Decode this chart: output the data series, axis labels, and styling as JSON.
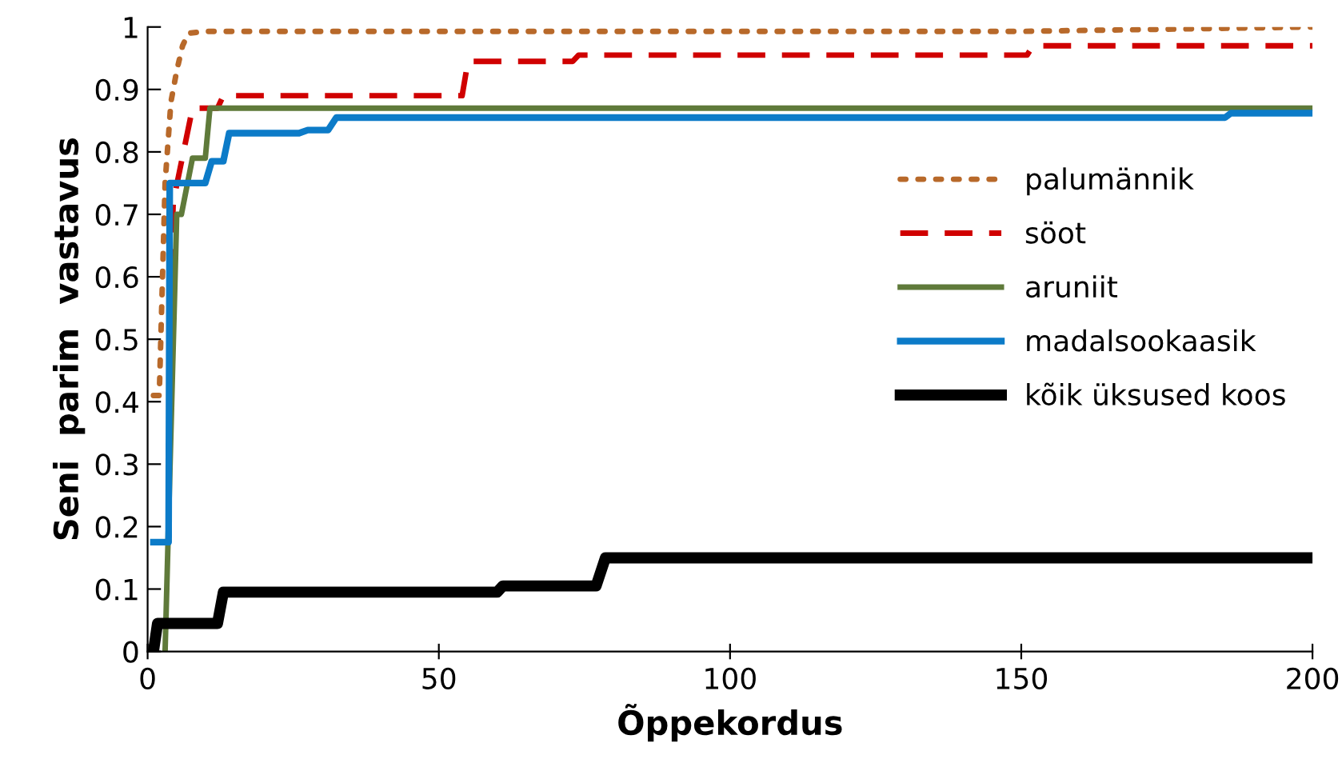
{
  "chart_data": {
    "type": "line",
    "xlabel": "Õppekordus",
    "ylabel": "Seni  parim  vastavus",
    "xlim": [
      0,
      200
    ],
    "ylim": [
      0,
      1
    ],
    "xticks": [
      0,
      50,
      100,
      150,
      200
    ],
    "yticks": [
      0,
      0.1,
      0.2,
      0.3,
      0.4,
      0.5,
      0.6,
      0.7,
      0.8,
      0.9,
      1
    ],
    "grid": false,
    "legend": "right",
    "series": [
      {
        "name": "palumännik",
        "color": "#b8692a",
        "line_style": "dotted",
        "x": [
          1,
          2,
          3,
          4,
          5,
          6,
          7,
          10,
          150,
          200
        ],
        "values": [
          0.41,
          0.41,
          0.75,
          0.88,
          0.93,
          0.97,
          0.99,
          0.993,
          0.993,
          1.0
        ]
      },
      {
        "name": "söot",
        "color": "#d00000",
        "line_style": "dashed",
        "x": [
          4,
          4.4,
          7.7,
          12,
          13,
          54,
          55,
          73,
          74,
          151,
          152,
          200
        ],
        "values": [
          0.6,
          0.72,
          0.87,
          0.87,
          0.89,
          0.89,
          0.945,
          0.945,
          0.955,
          0.955,
          0.97,
          0.97
        ]
      },
      {
        "name": "aruniit",
        "color": "#5f7a3a",
        "line_style": "solid",
        "x": [
          3,
          5,
          5.8,
          7.7,
          9.9,
          10.7,
          200
        ],
        "values": [
          0,
          0.7,
          0.7,
          0.79,
          0.79,
          0.87,
          0.87
        ]
      },
      {
        "name": "madalsookaasik",
        "color": "#0c7bc8",
        "line_style": "solid",
        "x": [
          1,
          3.6,
          3.8,
          9.9,
          11,
          13,
          14,
          26,
          27.5,
          31,
          32.4,
          185,
          186,
          200
        ],
        "values": [
          0.175,
          0.175,
          0.75,
          0.75,
          0.785,
          0.785,
          0.83,
          0.83,
          0.835,
          0.835,
          0.855,
          0.855,
          0.862,
          0.862
        ]
      },
      {
        "name": "kõik üksused koos",
        "color": "#000000",
        "line_style": "solid",
        "x": [
          1,
          1.7,
          12,
          13,
          60,
          61,
          77,
          78.6,
          200
        ],
        "values": [
          0,
          0.045,
          0.045,
          0.095,
          0.095,
          0.105,
          0.105,
          0.15,
          0.15
        ]
      }
    ]
  }
}
